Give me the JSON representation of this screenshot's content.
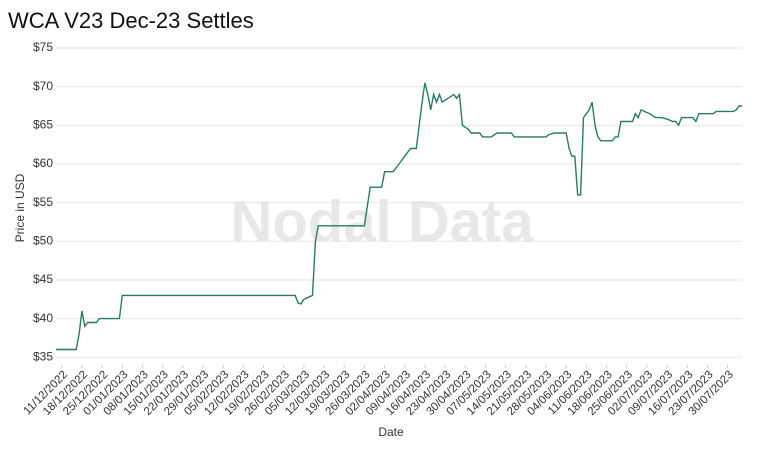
{
  "chart_data": {
    "type": "line",
    "title": "WCA V23 Dec-23 Settles",
    "watermark": "Nodal Data",
    "x_label": "Date",
    "y_label": "Price in USD",
    "color": "#2b7a66",
    "grid": true,
    "x": [
      "2022-12-09",
      "2022-12-16",
      "2022-12-17",
      "2022-12-18",
      "2022-12-19",
      "2022-12-20",
      "2022-12-23",
      "2022-12-24",
      "2022-12-31",
      "2023-01-01",
      "2023-03-02",
      "2023-03-03",
      "2023-03-04",
      "2023-03-05",
      "2023-03-08",
      "2023-03-09",
      "2023-03-10",
      "2023-03-26",
      "2023-03-28",
      "2023-04-01",
      "2023-04-02",
      "2023-04-05",
      "2023-04-07",
      "2023-04-09",
      "2023-04-11",
      "2023-04-13",
      "2023-04-14",
      "2023-04-15",
      "2023-04-16",
      "2023-04-17",
      "2023-04-18",
      "2023-04-19",
      "2023-04-20",
      "2023-04-21",
      "2023-04-22",
      "2023-04-24",
      "2023-04-26",
      "2023-04-27",
      "2023-04-28",
      "2023-04-29",
      "2023-05-01",
      "2023-05-02",
      "2023-05-05",
      "2023-05-06",
      "2023-05-09",
      "2023-05-11",
      "2023-05-16",
      "2023-05-17",
      "2023-05-28",
      "2023-05-29",
      "2023-05-31",
      "2023-06-04",
      "2023-06-05",
      "2023-06-06",
      "2023-06-07",
      "2023-06-08",
      "2023-06-09",
      "2023-06-10",
      "2023-06-12",
      "2023-06-13",
      "2023-06-14",
      "2023-06-15",
      "2023-06-16",
      "2023-06-20",
      "2023-06-21",
      "2023-06-22",
      "2023-06-23",
      "2023-06-27",
      "2023-06-28",
      "2023-06-29",
      "2023-06-30",
      "2023-07-03",
      "2023-07-05",
      "2023-07-07",
      "2023-07-09",
      "2023-07-11",
      "2023-07-12",
      "2023-07-13",
      "2023-07-14",
      "2023-07-18",
      "2023-07-19",
      "2023-07-20",
      "2023-07-25",
      "2023-07-26",
      "2023-08-01",
      "2023-08-02",
      "2023-08-03",
      "2023-08-04"
    ],
    "values": [
      36,
      36,
      38,
      41,
      39,
      39.5,
      39.5,
      40,
      40,
      43,
      43,
      42,
      41.9,
      42.5,
      43,
      50,
      52,
      52,
      57,
      57,
      59,
      59,
      60,
      61,
      62,
      62,
      65,
      68,
      70.5,
      69,
      67,
      69,
      68,
      69,
      68,
      68.5,
      69,
      68.5,
      69,
      65,
      64.5,
      64,
      64,
      63.5,
      63.5,
      64,
      64,
      63.5,
      63.5,
      63.8,
      64,
      64,
      62,
      61,
      61,
      56,
      56,
      66,
      67,
      68,
      65,
      63.5,
      63,
      63,
      63.5,
      63.5,
      65.5,
      65.5,
      66.5,
      66,
      67,
      66.5,
      66,
      66,
      65.8,
      65.5,
      65.5,
      65,
      66,
      66,
      65.5,
      66.5,
      66.5,
      66.8,
      66.8,
      67,
      67.5,
      67.5
    ],
    "xlim": [
      "2022-12-09",
      "2023-08-04"
    ],
    "xticks": [
      {
        "value": "2022-12-11",
        "label": "11/12/2022"
      },
      {
        "value": "2022-12-18",
        "label": "18/12/2022"
      },
      {
        "value": "2022-12-25",
        "label": "25/12/2022"
      },
      {
        "value": "2023-01-01",
        "label": "01/01/2023"
      },
      {
        "value": "2023-01-08",
        "label": "08/01/2023"
      },
      {
        "value": "2023-01-15",
        "label": "15/01/2023"
      },
      {
        "value": "2023-01-22",
        "label": "22/01/2023"
      },
      {
        "value": "2023-01-29",
        "label": "29/01/2023"
      },
      {
        "value": "2023-02-05",
        "label": "05/02/2023"
      },
      {
        "value": "2023-02-12",
        "label": "12/02/2023"
      },
      {
        "value": "2023-02-19",
        "label": "19/02/2023"
      },
      {
        "value": "2023-02-26",
        "label": "26/02/2023"
      },
      {
        "value": "2023-03-05",
        "label": "05/03/2023"
      },
      {
        "value": "2023-03-12",
        "label": "12/03/2023"
      },
      {
        "value": "2023-03-19",
        "label": "19/03/2023"
      },
      {
        "value": "2023-03-26",
        "label": "26/03/2023"
      },
      {
        "value": "2023-04-02",
        "label": "02/04/2023"
      },
      {
        "value": "2023-04-09",
        "label": "09/04/2023"
      },
      {
        "value": "2023-04-16",
        "label": "16/04/2023"
      },
      {
        "value": "2023-04-23",
        "label": "23/04/2023"
      },
      {
        "value": "2023-04-30",
        "label": "30/04/2023"
      },
      {
        "value": "2023-05-07",
        "label": "07/05/2023"
      },
      {
        "value": "2023-05-14",
        "label": "14/05/2023"
      },
      {
        "value": "2023-05-21",
        "label": "21/05/2023"
      },
      {
        "value": "2023-05-28",
        "label": "28/05/2023"
      },
      {
        "value": "2023-06-04",
        "label": "04/06/2023"
      },
      {
        "value": "2023-06-11",
        "label": "11/06/2023"
      },
      {
        "value": "2023-06-18",
        "label": "18/06/2023"
      },
      {
        "value": "2023-06-25",
        "label": "25/06/2023"
      },
      {
        "value": "2023-07-02",
        "label": "02/07/2023"
      },
      {
        "value": "2023-07-09",
        "label": "09/07/2023"
      },
      {
        "value": "2023-07-16",
        "label": "16/07/2023"
      },
      {
        "value": "2023-07-23",
        "label": "23/07/2023"
      },
      {
        "value": "2023-07-30",
        "label": "30/07/2023"
      }
    ],
    "ylim": [
      34,
      75
    ],
    "yticks": [
      {
        "value": 35,
        "label": "$35"
      },
      {
        "value": 40,
        "label": "$40"
      },
      {
        "value": 45,
        "label": "$45"
      },
      {
        "value": 50,
        "label": "$50"
      },
      {
        "value": 55,
        "label": "$55"
      },
      {
        "value": 60,
        "label": "$60"
      },
      {
        "value": 65,
        "label": "$65"
      },
      {
        "value": 70,
        "label": "$70"
      },
      {
        "value": 75,
        "label": "$75"
      }
    ]
  }
}
